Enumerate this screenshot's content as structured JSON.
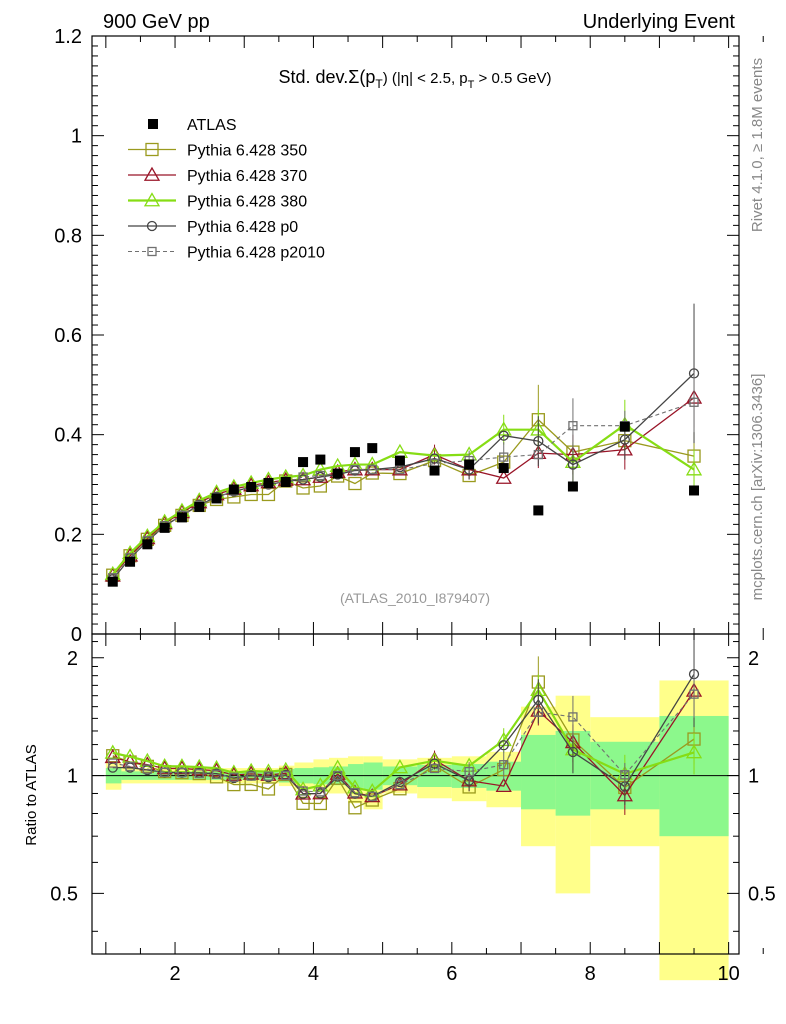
{
  "header": {
    "left": "900 GeV pp",
    "right": "Underlying Event"
  },
  "side_labels": {
    "rivet": "Rivet 4.1.0, ≥ 1.8M events",
    "mcplots": "mcplots.cern.ch [arXiv:1306.3436]"
  },
  "chart_data": {
    "type": "scatter",
    "title": "Std. dev.Σ(pT) (|η| < 2.5, pT > 0.5 GeV)",
    "title_parts": {
      "lead": "Std. dev.",
      "sigma": "Σ(p",
      "sub_t": "T",
      "mid": ") (|η| < 2.5, p",
      "sub_t2": "T",
      "tail": " > 0.5 GeV)"
    },
    "watermark": "(ATLAS_2010_I879407)",
    "xlabel": "",
    "xlim": [
      0.8,
      10.15
    ],
    "xticks": [
      "2",
      "4",
      "6",
      "8",
      "10"
    ],
    "ylim": [
      0,
      1.2
    ],
    "yticks": [
      "0",
      "0.2",
      "0.4",
      "0.6",
      "0.8",
      "1",
      "1.2"
    ],
    "ratio": {
      "ylabel": "Ratio to ATLAS",
      "ylim": [
        0.35,
        2.3
      ],
      "yticks": [
        "0.5",
        "1",
        "2"
      ]
    },
    "colors": {
      "atlas": "#000000",
      "p350": "#9a9a1e",
      "p370": "#991528",
      "p380": "#86dd14",
      "p0": "#444444",
      "p2010": "#707070",
      "band_outer": "#ffff8a",
      "band_inner": "#8cf88c"
    },
    "x": [
      1.1,
      1.35,
      1.6,
      1.85,
      2.1,
      2.35,
      2.6,
      2.85,
      3.1,
      3.35,
      3.6,
      3.85,
      4.1,
      4.35,
      4.6,
      4.85,
      5.25,
      5.75,
      6.25,
      6.75,
      7.25,
      7.75,
      8.5,
      9.5
    ],
    "series": [
      {
        "name": "ATLAS",
        "values": [
          0.105,
          0.145,
          0.18,
          0.213,
          0.234,
          0.255,
          0.272,
          0.29,
          0.295,
          0.303,
          0.305,
          0.345,
          0.35,
          0.322,
          0.365,
          0.373,
          0.348,
          0.328,
          0.34,
          0.333,
          0.248,
          0.296,
          0.416,
          0.288
        ]
      },
      {
        "name": "Pythia 6.428 350",
        "values": [
          0.118,
          0.157,
          0.19,
          0.218,
          0.238,
          0.258,
          0.27,
          0.275,
          0.28,
          0.28,
          0.307,
          0.293,
          0.297,
          0.317,
          0.302,
          0.323,
          0.322,
          0.348,
          0.318,
          0.345,
          0.43,
          0.365,
          0.388,
          0.357
        ]
      },
      {
        "name": "Pythia 6.428 370",
        "values": [
          0.117,
          0.157,
          0.192,
          0.222,
          0.244,
          0.264,
          0.28,
          0.291,
          0.298,
          0.304,
          0.309,
          0.31,
          0.315,
          0.325,
          0.33,
          0.33,
          0.33,
          0.36,
          0.33,
          0.313,
          0.363,
          0.36,
          0.37,
          0.474
        ]
      },
      {
        "name": "Pythia 6.428 380",
        "values": [
          0.12,
          0.162,
          0.196,
          0.225,
          0.247,
          0.268,
          0.284,
          0.295,
          0.303,
          0.31,
          0.315,
          0.318,
          0.33,
          0.337,
          0.34,
          0.34,
          0.365,
          0.358,
          0.36,
          0.41,
          0.41,
          0.345,
          0.42,
          0.33
        ]
      },
      {
        "name": "Pythia 6.428 p0",
        "values": [
          0.11,
          0.152,
          0.186,
          0.217,
          0.238,
          0.259,
          0.275,
          0.286,
          0.295,
          0.3,
          0.306,
          0.31,
          0.315,
          0.32,
          0.328,
          0.33,
          0.335,
          0.352,
          0.33,
          0.398,
          0.387,
          0.34,
          0.39,
          0.523
        ]
      },
      {
        "name": "Pythia 6.428 p2010",
        "values": [
          0.113,
          0.153,
          0.187,
          0.217,
          0.238,
          0.258,
          0.274,
          0.287,
          0.294,
          0.302,
          0.305,
          0.315,
          0.318,
          0.322,
          0.33,
          0.33,
          0.33,
          0.342,
          0.348,
          0.355,
          0.36,
          0.418,
          0.418,
          0.465
        ]
      }
    ],
    "legend": [
      "ATLAS",
      "Pythia 6.428 350",
      "Pythia 6.428 370",
      "Pythia 6.428 380",
      "Pythia 6.428 p0",
      "Pythia 6.428 p2010"
    ],
    "errors_abs": {
      "Pythia 6.428 350": [
        [
          7.25,
          0.07
        ],
        [
          9.5,
          0.05
        ]
      ],
      "Pythia 6.428 370": [
        [
          5.75,
          0.02
        ],
        [
          6.25,
          0.02
        ],
        [
          7.25,
          0.03
        ],
        [
          7.75,
          0.04
        ],
        [
          8.5,
          0.04
        ],
        [
          9.5,
          0.06
        ]
      ],
      "Pythia 6.428 380": [
        [
          6.75,
          0.03
        ],
        [
          7.25,
          0.04
        ],
        [
          7.75,
          0.04
        ],
        [
          8.5,
          0.05
        ],
        [
          9.5,
          0.04
        ]
      ],
      "Pythia 6.428 p0": [
        [
          6.25,
          0.02
        ],
        [
          7.25,
          0.05
        ],
        [
          7.75,
          0.04
        ],
        [
          8.5,
          0.04
        ],
        [
          9.5,
          0.14
        ]
      ],
      "Pythia 6.428 p2010": [
        [
          6.25,
          0.02
        ],
        [
          6.75,
          0.03
        ],
        [
          7.75,
          0.055
        ],
        [
          8.5,
          0.03
        ],
        [
          9.5,
          0.06
        ]
      ]
    },
    "bands": [
      {
        "xlo": 1.0,
        "xhi": 1.225,
        "outer": [
          0.92,
          1.08
        ],
        "inner": [
          0.955,
          1.045
        ]
      },
      {
        "xlo": 1.225,
        "xhi": 3.5,
        "outer": [
          0.955,
          1.045
        ],
        "inner": [
          0.975,
          1.025
        ]
      },
      {
        "xlo": 3.5,
        "xhi": 3.725,
        "outer": [
          0.94,
          1.06
        ],
        "inner": [
          0.96,
          1.04
        ]
      },
      {
        "xlo": 3.725,
        "xhi": 4.0,
        "outer": [
          0.92,
          1.08
        ],
        "inner": [
          0.955,
          1.045
        ]
      },
      {
        "xlo": 4.0,
        "xhi": 4.225,
        "outer": [
          0.91,
          1.1
        ],
        "inner": [
          0.95,
          1.05
        ]
      },
      {
        "xlo": 4.225,
        "xhi": 4.5,
        "outer": [
          0.9,
          1.11
        ],
        "inner": [
          0.945,
          1.055
        ]
      },
      {
        "xlo": 4.5,
        "xhi": 4.725,
        "outer": [
          0.85,
          1.12
        ],
        "inner": [
          0.93,
          1.07
        ]
      },
      {
        "xlo": 4.725,
        "xhi": 5.0,
        "outer": [
          0.82,
          1.12
        ],
        "inner": [
          0.92,
          1.08
        ]
      },
      {
        "xlo": 5.0,
        "xhi": 5.5,
        "outer": [
          0.9,
          1.1
        ],
        "inner": [
          0.945,
          1.055
        ]
      },
      {
        "xlo": 5.5,
        "xhi": 6.0,
        "outer": [
          0.875,
          1.11
        ],
        "inner": [
          0.935,
          1.065
        ]
      },
      {
        "xlo": 6.0,
        "xhi": 6.5,
        "outer": [
          0.86,
          1.12
        ],
        "inner": [
          0.93,
          1.07
        ]
      },
      {
        "xlo": 6.5,
        "xhi": 7.0,
        "outer": [
          0.83,
          1.15
        ],
        "inner": [
          0.915,
          1.085
        ]
      },
      {
        "xlo": 7.0,
        "xhi": 7.5,
        "outer": [
          0.66,
          1.5
        ],
        "inner": [
          0.82,
          1.27
        ]
      },
      {
        "xlo": 7.5,
        "xhi": 8.0,
        "outer": [
          0.5,
          1.6
        ],
        "inner": [
          0.79,
          1.3
        ]
      },
      {
        "xlo": 8.0,
        "xhi": 9.0,
        "outer": [
          0.66,
          1.41
        ],
        "inner": [
          0.82,
          1.22
        ]
      },
      {
        "xlo": 9.0,
        "xhi": 10.0,
        "outer": [
          0.3,
          1.75
        ],
        "inner": [
          0.7,
          1.42
        ]
      }
    ]
  }
}
